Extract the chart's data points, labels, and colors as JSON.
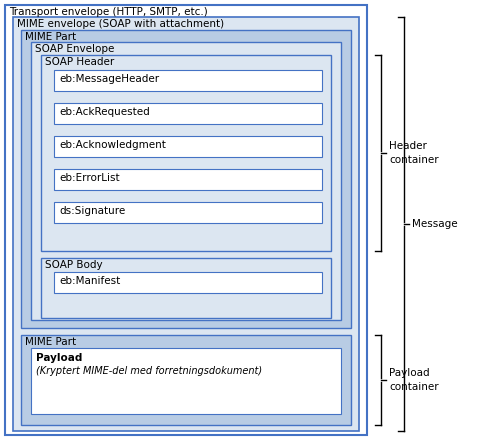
{
  "fig_width": 4.93,
  "fig_height": 4.43,
  "dpi": 100,
  "bg_color": "#ffffff",
  "transport_label": "Transport envelope (HTTP, SMTP, etc.)",
  "mime_env_label": "MIME envelope (SOAP with attachment)",
  "mime_part1_label": "MIME Part",
  "soap_env_label": "SOAP Envelope",
  "soap_header_label": "SOAP Header",
  "soap_body_label": "SOAP Body",
  "mime_part2_label": "MIME Part",
  "header_items": [
    "eb:MessageHeader",
    "eb:AckRequested",
    "eb:Acknowledgment",
    "eb:ErrorList",
    "ds:Signature"
  ],
  "body_items": [
    "eb:Manifest"
  ],
  "payload_bold": "Payload",
  "payload_italic": "(Kryptert MIME-del med forretningsdokument)",
  "bracket_header": "Header\ncontainer",
  "bracket_message": "Message",
  "bracket_payload": "Payload\ncontainer",
  "outer_border_color": "#4472c4",
  "inner_border_color": "#4472c4",
  "box_fill_transport": "#ffffff",
  "box_fill_mime_env": "#dce6f1",
  "box_fill_mime_part": "#b8cce4",
  "box_fill_soap_env": "#dce6f1",
  "box_fill_soap_header": "#dce6f1",
  "box_fill_soap_body": "#dce6f1",
  "box_fill_item": "#ffffff",
  "box_fill_mime_part2": "#b8cce4",
  "box_fill_payload": "#ffffff",
  "text_color": "#000000",
  "font_size_label": 7.5,
  "font_size_item": 7.5
}
